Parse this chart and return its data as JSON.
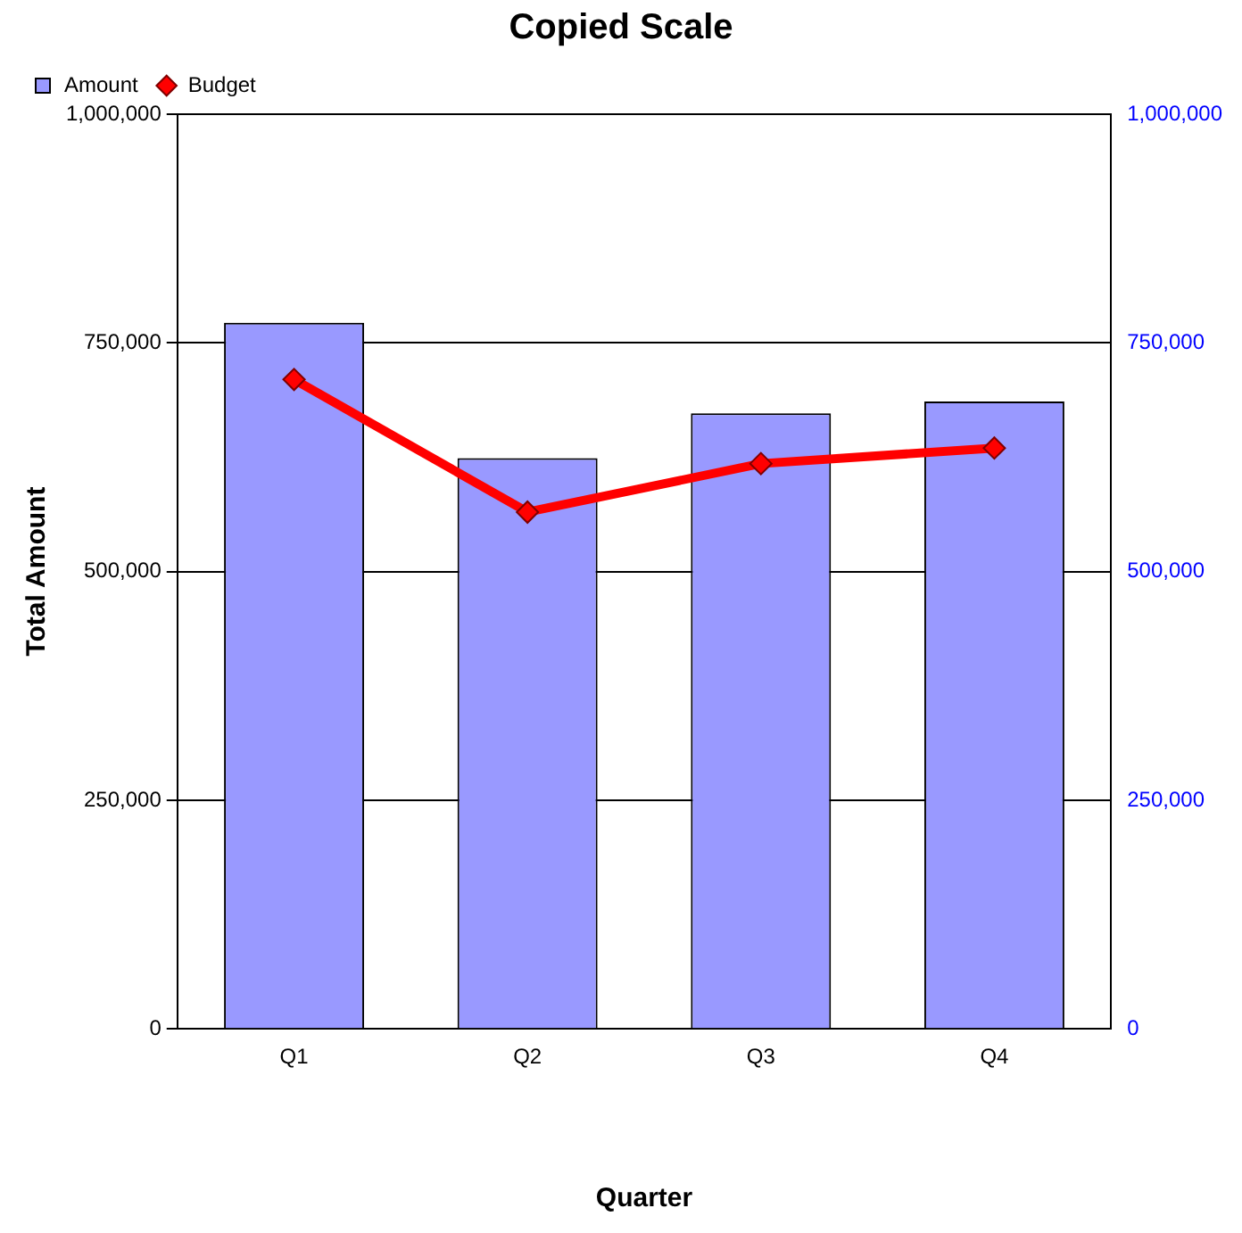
{
  "chart_data": {
    "type": "bar",
    "title": "Copied Scale",
    "xlabel": "Quarter",
    "ylabel": "Total Amount",
    "categories": [
      "Q1",
      "Q2",
      "Q3",
      "Q4"
    ],
    "series": [
      {
        "name": "Amount",
        "color": "#9999ff",
        "values": [
          772000,
          624000,
          673000,
          686000
        ]
      },
      {
        "name": "Budget",
        "type": "line",
        "color": "#ff0000",
        "values": [
          710000,
          565000,
          618000,
          635000
        ]
      }
    ],
    "ylim": [
      0,
      1000000
    ],
    "yticks": [
      {
        "value": 0,
        "label": "0"
      },
      {
        "value": 250000,
        "label": "250,000"
      },
      {
        "value": 500000,
        "label": "500,000"
      },
      {
        "value": 750000,
        "label": "750,000"
      },
      {
        "value": 1000000,
        "label": "1,000,000"
      }
    ],
    "y2lim": [
      0,
      1000000
    ],
    "y2ticks": [
      {
        "value": 0,
        "label": "0"
      },
      {
        "value": 250000,
        "label": "250,000"
      },
      {
        "value": 500000,
        "label": "500,000"
      },
      {
        "value": 750000,
        "label": "750,000"
      },
      {
        "value": 1000000,
        "label": "1,000,000"
      }
    ],
    "grid": "y",
    "legend": "top left",
    "marker": "diamond"
  }
}
